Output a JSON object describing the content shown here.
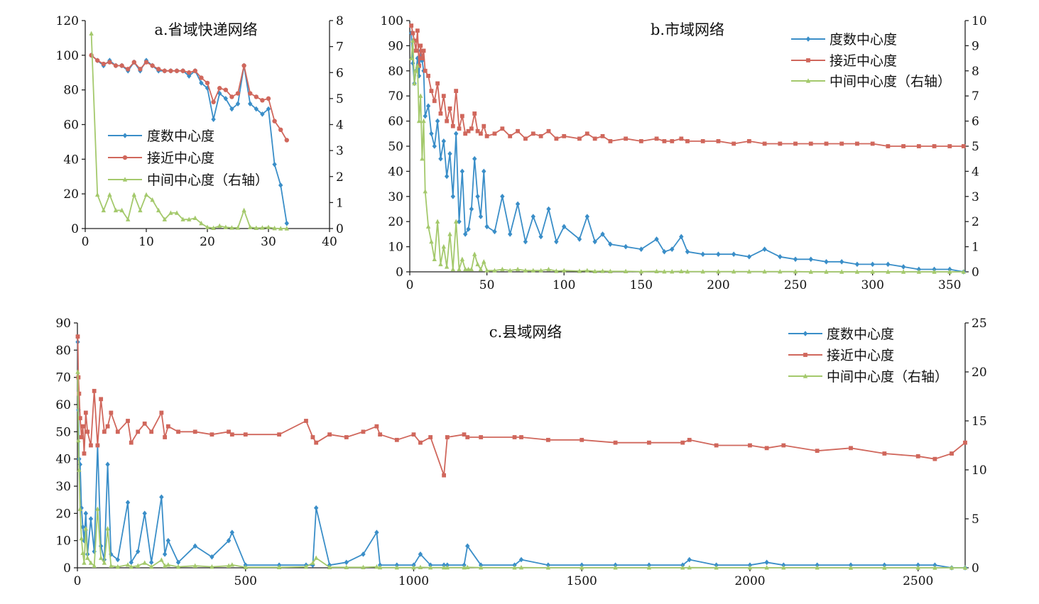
{
  "colors": {
    "degree": "#3a8ec8",
    "closeness": "#d0675c",
    "betweenness": "#a4c96c"
  },
  "chart_data": [
    {
      "id": "a",
      "type": "line",
      "title": "a.省域快递网络",
      "xlim": [
        0,
        40
      ],
      "xticks": [
        0,
        10,
        20,
        30,
        40
      ],
      "ylim": [
        0,
        120
      ],
      "yticks": [
        0,
        20,
        40,
        60,
        80,
        100,
        120
      ],
      "y2lim": [
        0,
        8
      ],
      "y2ticks": [
        0,
        1,
        2,
        3,
        4,
        5,
        6,
        7,
        8
      ],
      "legend_position": "center-left",
      "x": [
        1,
        2,
        3,
        4,
        5,
        6,
        7,
        8,
        9,
        10,
        11,
        12,
        13,
        14,
        15,
        16,
        17,
        18,
        19,
        20,
        21,
        22,
        23,
        24,
        25,
        26,
        27,
        28,
        29,
        30,
        31,
        32,
        33
      ],
      "series": [
        {
          "name": "度数中心度",
          "axis": "left",
          "marker": "diamond",
          "values": [
            100,
            97,
            94,
            97,
            94,
            94,
            91,
            96,
            91,
            97,
            94,
            91,
            91,
            91,
            91,
            91,
            88,
            91,
            84,
            81,
            63,
            78,
            75,
            69,
            72,
            94,
            72,
            69,
            66,
            69,
            37,
            25,
            3
          ]
        },
        {
          "name": "接近中心度",
          "axis": "left",
          "marker": "circle",
          "values": [
            100,
            97,
            95,
            96,
            94,
            94,
            92,
            96,
            92,
            96,
            94,
            92,
            91,
            91,
            91,
            91,
            90,
            91,
            87,
            84,
            73,
            81,
            80,
            76,
            78,
            94,
            78,
            76,
            74,
            75,
            62,
            57,
            51
          ]
        },
        {
          "name": "中间中心度（右轴）",
          "axis": "right",
          "marker": "triangle",
          "values": [
            7.5,
            1.3,
            0.7,
            1.3,
            0.7,
            0.7,
            0.35,
            1.3,
            0.7,
            1.3,
            1.1,
            0.7,
            0.35,
            0.6,
            0.6,
            0.35,
            0.35,
            0.4,
            0.2,
            0.05,
            0.02,
            0.1,
            0.05,
            0.03,
            0.03,
            0.7,
            0.05,
            0.02,
            0.03,
            0.05,
            0.01,
            0.0,
            0.0
          ]
        }
      ]
    },
    {
      "id": "b",
      "type": "line",
      "title": "b.市域网络",
      "xlim": [
        0,
        360
      ],
      "xticks": [
        0,
        50,
        100,
        150,
        200,
        250,
        300,
        350
      ],
      "ylim": [
        0,
        100
      ],
      "yticks": [
        0,
        10,
        20,
        30,
        40,
        50,
        60,
        70,
        80,
        90,
        100
      ],
      "y2lim": [
        0,
        10
      ],
      "y2ticks": [
        0,
        1,
        2,
        3,
        4,
        5,
        6,
        7,
        8,
        9,
        10
      ],
      "legend_position": "top-right",
      "x": [
        1,
        2,
        3,
        4,
        5,
        6,
        7,
        8,
        9,
        10,
        12,
        14,
        16,
        18,
        20,
        22,
        24,
        26,
        28,
        30,
        32,
        34,
        36,
        38,
        40,
        42,
        44,
        46,
        48,
        50,
        55,
        60,
        65,
        70,
        75,
        80,
        85,
        90,
        95,
        100,
        110,
        115,
        120,
        125,
        130,
        140,
        150,
        160,
        165,
        170,
        176,
        180,
        190,
        200,
        210,
        220,
        230,
        240,
        250,
        260,
        270,
        280,
        290,
        300,
        310,
        320,
        330,
        340,
        350,
        359
      ],
      "series": [
        {
          "name": "度数中心度",
          "axis": "left",
          "marker": "diamond",
          "values": [
            95,
            83,
            75,
            80,
            85,
            78,
            88,
            84,
            80,
            62,
            66,
            55,
            50,
            60,
            45,
            52,
            38,
            47,
            30,
            55,
            20,
            40,
            15,
            17,
            25,
            45,
            30,
            22,
            40,
            18,
            16,
            30,
            15,
            27,
            12,
            22,
            14,
            25,
            12,
            18,
            13,
            22,
            12,
            15,
            11,
            10,
            9,
            13,
            8,
            9,
            14,
            8,
            7,
            7,
            7,
            6,
            9,
            6,
            5,
            5,
            4,
            4,
            3,
            3,
            3,
            2,
            1,
            1,
            1,
            0
          ]
        },
        {
          "name": "接近中心度",
          "axis": "left",
          "marker": "square",
          "values": [
            98,
            95,
            92,
            88,
            96,
            82,
            90,
            85,
            88,
            80,
            78,
            72,
            68,
            75,
            63,
            70,
            60,
            65,
            58,
            72,
            57,
            62,
            55,
            56,
            57,
            63,
            56,
            55,
            58,
            54,
            55,
            57,
            54,
            56,
            53,
            55,
            54,
            56,
            53,
            54,
            53,
            55,
            53,
            54,
            52,
            53,
            52,
            53,
            52,
            52,
            53,
            52,
            52,
            52,
            51,
            52,
            51,
            51,
            51,
            51,
            51,
            51,
            51,
            51,
            50,
            50,
            50,
            50,
            50,
            50
          ]
        },
        {
          "name": "中间中心度（右轴）",
          "axis": "right",
          "marker": "triangle",
          "values": [
            8.5,
            9.2,
            7.5,
            8.0,
            8.2,
            6.0,
            7.0,
            4.5,
            6.0,
            3.2,
            1.8,
            1.2,
            0.5,
            2.0,
            0.3,
            1.0,
            0.2,
            1.5,
            0.1,
            2.0,
            0.1,
            0.5,
            0.1,
            0.1,
            0.1,
            0.7,
            0.3,
            0.1,
            0.4,
            0.05,
            0.05,
            0.1,
            0.05,
            0.1,
            0.05,
            0.05,
            0.05,
            0.1,
            0.03,
            0.05,
            0.03,
            0.05,
            0.02,
            0.03,
            0.02,
            0.02,
            0.01,
            0.02,
            0.01,
            0.01,
            0.02,
            0.01,
            0.01,
            0.01,
            0.01,
            0.01,
            0.01,
            0.01,
            0.01,
            0.0,
            0.0,
            0.0,
            0.0,
            0.0,
            0.0,
            0.0,
            0.0,
            0.0,
            0.0,
            0.0
          ]
        }
      ]
    },
    {
      "id": "c",
      "type": "line",
      "title": "c.县域网络",
      "xlim": [
        0,
        2640
      ],
      "xticks": [
        0,
        500,
        1000,
        1500,
        2000,
        2500
      ],
      "ylim": [
        0,
        90
      ],
      "yticks": [
        0,
        10,
        20,
        30,
        40,
        50,
        60,
        70,
        80,
        90
      ],
      "y2lim": [
        0,
        25
      ],
      "y2ticks": [
        0,
        5,
        10,
        15,
        20,
        25
      ],
      "legend_position": "top-right",
      "x": [
        1,
        3,
        5,
        8,
        12,
        16,
        20,
        25,
        30,
        40,
        50,
        60,
        70,
        80,
        90,
        100,
        120,
        150,
        160,
        180,
        200,
        220,
        250,
        260,
        270,
        300,
        350,
        400,
        450,
        460,
        500,
        600,
        680,
        700,
        710,
        750,
        800,
        850,
        890,
        900,
        950,
        1000,
        1020,
        1050,
        1090,
        1100,
        1150,
        1160,
        1200,
        1300,
        1320,
        1400,
        1500,
        1600,
        1700,
        1800,
        1820,
        1900,
        2000,
        2050,
        2100,
        2200,
        2300,
        2400,
        2500,
        2550,
        2600,
        2640
      ],
      "series": [
        {
          "name": "度数中心度",
          "axis": "left",
          "marker": "diamond",
          "values": [
            83,
            58,
            40,
            38,
            22,
            15,
            10,
            20,
            5,
            18,
            6,
            45,
            8,
            3,
            38,
            5,
            3,
            24,
            2,
            6,
            20,
            2,
            26,
            5,
            10,
            2,
            8,
            4,
            10,
            13,
            1,
            1,
            1,
            1,
            22,
            1,
            2,
            5,
            13,
            1,
            1,
            1,
            5,
            1,
            1,
            1,
            1,
            8,
            1,
            1,
            3,
            1,
            1,
            1,
            1,
            1,
            3,
            1,
            1,
            2,
            1,
            1,
            1,
            1,
            1,
            1,
            0,
            0
          ]
        },
        {
          "name": "接近中心度",
          "axis": "left",
          "marker": "square",
          "values": [
            85,
            70,
            64,
            55,
            48,
            52,
            42,
            57,
            50,
            45,
            65,
            45,
            62,
            50,
            52,
            57,
            50,
            54,
            46,
            50,
            53,
            50,
            57,
            48,
            52,
            50,
            50,
            49,
            50,
            49,
            49,
            49,
            54,
            48,
            46,
            49,
            48,
            50,
            52,
            49,
            47,
            49,
            46,
            48,
            34,
            48,
            49,
            48,
            48,
            48,
            48,
            47,
            47,
            46,
            46,
            46,
            47,
            45,
            45,
            44,
            45,
            43,
            44,
            42,
            41,
            40,
            42,
            46
          ]
        },
        {
          "name": "中间中心度（右轴）",
          "axis": "right",
          "marker": "triangle",
          "values": [
            20,
            13,
            10,
            6,
            3,
            1.5,
            0.5,
            4,
            1,
            0.5,
            0.2,
            6,
            1,
            0.5,
            4,
            0.2,
            0.1,
            0.3,
            0.1,
            0.2,
            0.5,
            0.1,
            0.8,
            0.2,
            0.3,
            0.1,
            0.2,
            0.1,
            0.2,
            0.3,
            0.05,
            0.05,
            0.1,
            0.5,
            1,
            0.05,
            0.05,
            0.05,
            0.1,
            0.03,
            0.02,
            0.02,
            0.05,
            0.02,
            0.02,
            0.02,
            0.02,
            0.05,
            0.02,
            0.01,
            0.02,
            0.01,
            0.01,
            0.01,
            0.01,
            0.01,
            0.02,
            0.01,
            0.01,
            0.01,
            0.01,
            0.01,
            0.0,
            0.0,
            0.0,
            0.0,
            0.0,
            0.0
          ]
        }
      ]
    }
  ]
}
